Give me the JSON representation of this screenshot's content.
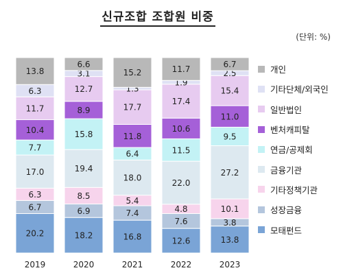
{
  "title": "신규조합 조합원 비중",
  "unit_label": "(단위: %)",
  "chart_data": {
    "type": "bar",
    "stacked": true,
    "categories": [
      "2019",
      "2020",
      "2021",
      "2022",
      "2023"
    ],
    "ylim": [
      0,
      100
    ],
    "grid": false,
    "legend_position": "right",
    "series": [
      {
        "name": "모태펀드",
        "color": "#7aa4d6",
        "values": [
          20.2,
          18.2,
          16.8,
          12.6,
          13.8
        ]
      },
      {
        "name": "성장금융",
        "color": "#b4c6dd",
        "values": [
          6.7,
          6.9,
          7.4,
          7.6,
          3.8
        ]
      },
      {
        "name": "기타정책기관",
        "color": "#f7d4ec",
        "values": [
          6.3,
          8.5,
          5.4,
          4.8,
          10.1
        ]
      },
      {
        "name": "금융기관",
        "color": "#dde9f0",
        "values": [
          17.0,
          19.4,
          18.0,
          22.0,
          27.2
        ]
      },
      {
        "name": "연금/공제회",
        "color": "#c3f2f5",
        "values": [
          7.7,
          15.8,
          6.4,
          11.5,
          9.5
        ]
      },
      {
        "name": "벤처캐피탈",
        "color": "#a560d8",
        "values": [
          10.4,
          8.9,
          11.8,
          10.6,
          11.0
        ]
      },
      {
        "name": "일반법인",
        "color": "#e7cbf0",
        "values": [
          11.7,
          12.7,
          17.7,
          17.4,
          15.4
        ]
      },
      {
        "name": "기타단체/외국인",
        "color": "#dfe1f4",
        "values": [
          6.3,
          3.1,
          1.3,
          1.9,
          2.5
        ]
      },
      {
        "name": "개인",
        "color": "#b8b8b8",
        "values": [
          13.8,
          6.6,
          15.2,
          11.7,
          6.7
        ]
      }
    ],
    "legend_order": [
      "개인",
      "기타단체/외국인",
      "일반법인",
      "벤처캐피탈",
      "연금/공제회",
      "금융기관",
      "기타정책기관",
      "성장금융",
      "모태펀드"
    ]
  }
}
